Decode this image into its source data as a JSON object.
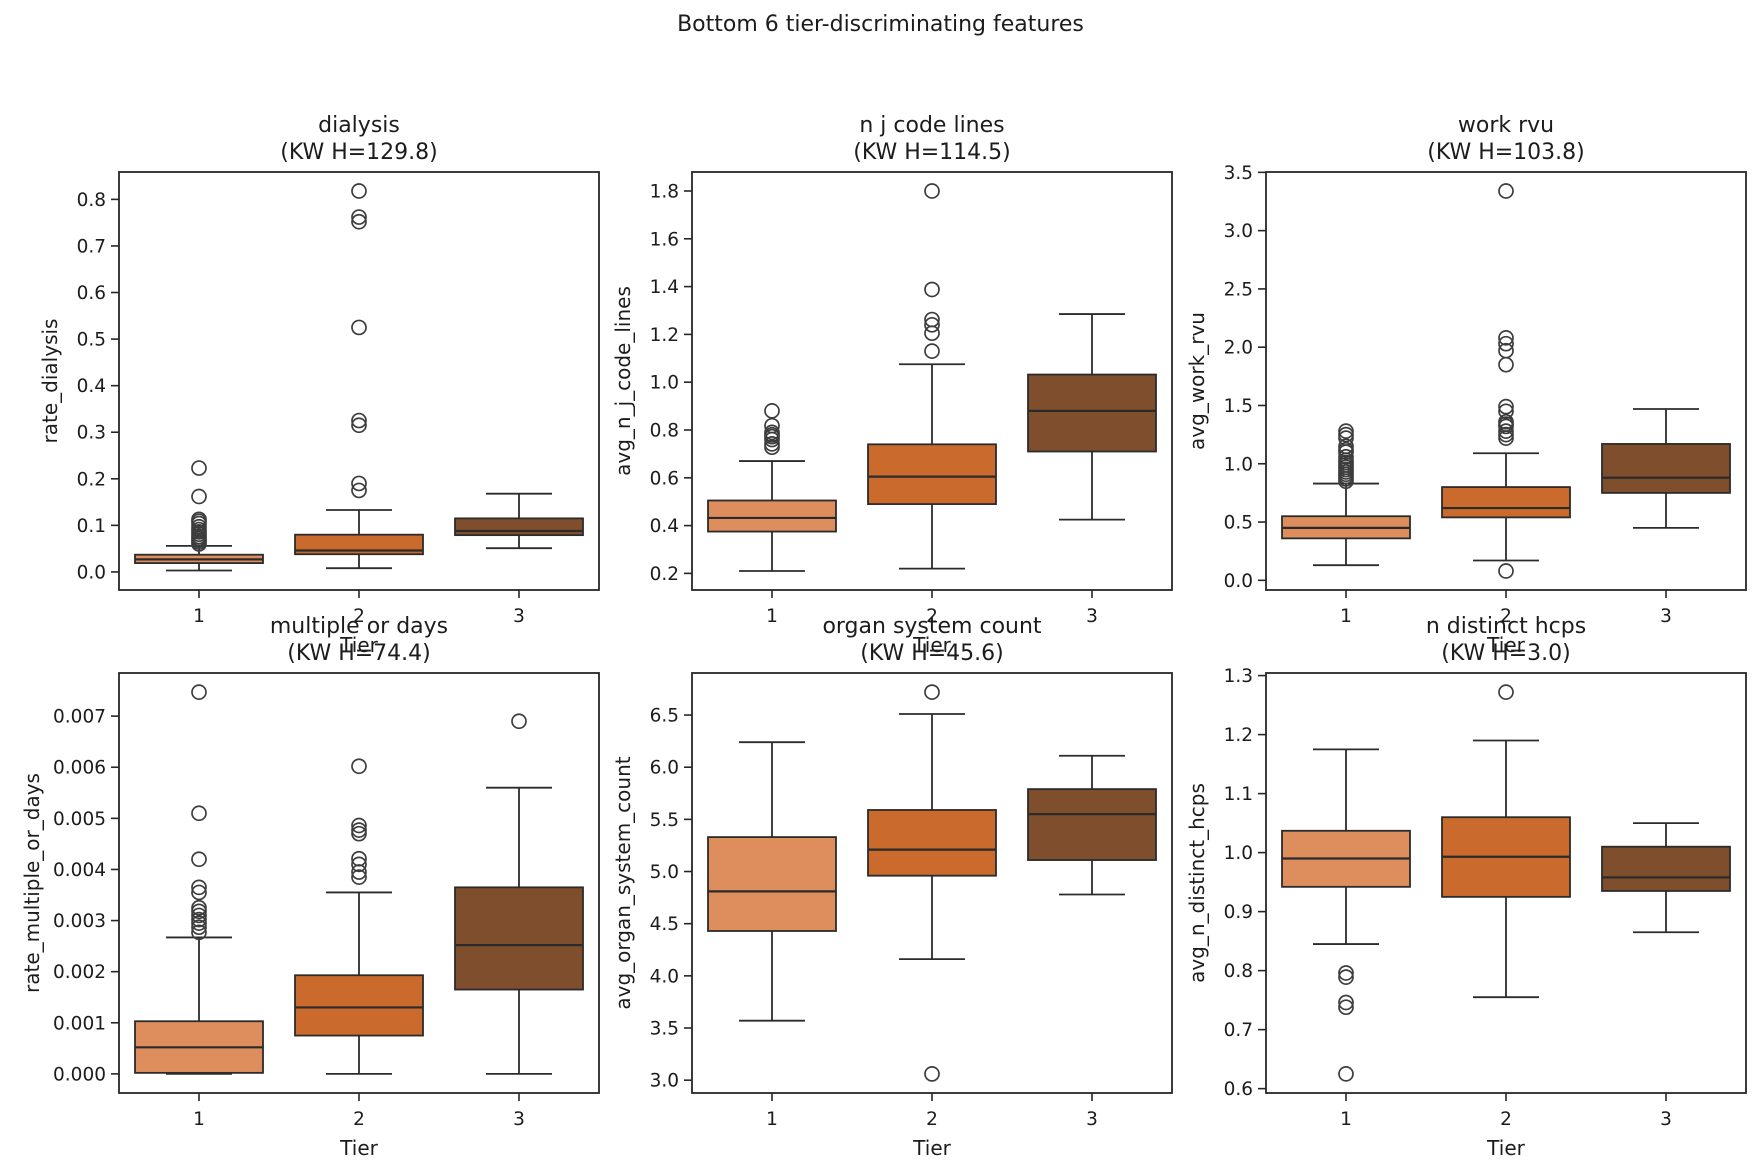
{
  "figure": {
    "suptitle": "Bottom 6 tier-discriminating features",
    "background": "#ffffff",
    "text_color": "#1c1c1c"
  },
  "palette": {
    "tier_fills": [
      "#DD8E5C",
      "#CB6A2D",
      "#7F4E2C"
    ],
    "box_edge": "#2b2b2b",
    "whisker": "#2b2b2b",
    "outlier_edge": "#3d3d3d",
    "axis_color": "#262626"
  },
  "chart_data": [
    {
      "type": "box",
      "title": "dialysis",
      "subtitle": "(KW H=129.8)",
      "kw_h": 129.8,
      "xlabel": "Tier",
      "ylabel": "rate_dialysis",
      "categories": [
        "1",
        "2",
        "3"
      ],
      "ylim": [
        -0.0388,
        0.8588
      ],
      "yticks": [
        0.0,
        0.1,
        0.2,
        0.3,
        0.4,
        0.5,
        0.6,
        0.7,
        0.8
      ],
      "ytick_decimals": 1,
      "boxes": [
        {
          "tier": "1",
          "whisker_low": 0.003,
          "q1": 0.019,
          "median": 0.027,
          "q3": 0.037,
          "whisker_high": 0.056,
          "outliers": [
            0.06,
            0.064,
            0.068,
            0.072,
            0.076,
            0.081,
            0.086,
            0.091,
            0.097,
            0.104,
            0.109,
            0.113,
            0.162,
            0.223
          ]
        },
        {
          "tier": "2",
          "whisker_low": 0.008,
          "q1": 0.038,
          "median": 0.046,
          "q3": 0.08,
          "whisker_high": 0.133,
          "outliers": [
            0.175,
            0.19,
            0.315,
            0.325,
            0.525,
            0.752,
            0.762,
            0.818
          ]
        },
        {
          "tier": "3",
          "whisker_low": 0.051,
          "q1": 0.079,
          "median": 0.088,
          "q3": 0.115,
          "whisker_high": 0.168,
          "outliers": []
        }
      ]
    },
    {
      "type": "box",
      "title": "n j code lines",
      "subtitle": "(KW H=114.5)",
      "kw_h": 114.5,
      "xlabel": "Tier",
      "ylabel": "avg_n_j_code_lines",
      "categories": [
        "1",
        "2",
        "3"
      ],
      "ylim": [
        0.1305,
        1.8795
      ],
      "yticks": [
        0.2,
        0.4,
        0.6,
        0.8,
        1.0,
        1.2,
        1.4,
        1.6,
        1.8
      ],
      "ytick_decimals": 1,
      "boxes": [
        {
          "tier": "1",
          "whisker_low": 0.21,
          "q1": 0.375,
          "median": 0.432,
          "q3": 0.505,
          "whisker_high": 0.67,
          "outliers": [
            0.728,
            0.742,
            0.76,
            0.772,
            0.78,
            0.79,
            0.818,
            0.88
          ]
        },
        {
          "tier": "2",
          "whisker_low": 0.22,
          "q1": 0.49,
          "median": 0.605,
          "q3": 0.74,
          "whisker_high": 1.075,
          "outliers": [
            1.13,
            1.205,
            1.24,
            1.262,
            1.388,
            1.8
          ]
        },
        {
          "tier": "3",
          "whisker_low": 0.425,
          "q1": 0.71,
          "median": 0.88,
          "q3": 1.032,
          "whisker_high": 1.285,
          "outliers": []
        }
      ]
    },
    {
      "type": "box",
      "title": "work rvu",
      "subtitle": "(KW H=103.8)",
      "kw_h": 103.8,
      "xlabel": "Tier",
      "ylabel": "avg_work_rvu",
      "categories": [
        "1",
        "2",
        "3"
      ],
      "ylim": [
        -0.083,
        3.503
      ],
      "yticks": [
        0.0,
        0.5,
        1.0,
        1.5,
        2.0,
        2.5,
        3.0,
        3.5
      ],
      "ytick_decimals": 1,
      "boxes": [
        {
          "tier": "1",
          "whisker_low": 0.13,
          "q1": 0.36,
          "median": 0.45,
          "q3": 0.55,
          "whisker_high": 0.83,
          "outliers": [
            0.85,
            0.87,
            0.89,
            0.91,
            0.93,
            0.95,
            0.97,
            0.99,
            1.01,
            1.03,
            1.06,
            1.1,
            1.12,
            1.15,
            1.22,
            1.25,
            1.28
          ]
        },
        {
          "tier": "2",
          "whisker_low": 0.17,
          "q1": 0.54,
          "median": 0.62,
          "q3": 0.8,
          "whisker_high": 1.09,
          "outliers": [
            0.08,
            1.22,
            1.25,
            1.28,
            1.32,
            1.34,
            1.36,
            1.45,
            1.49,
            1.85,
            1.97,
            2.03,
            2.08,
            3.34
          ]
        },
        {
          "tier": "3",
          "whisker_low": 0.45,
          "q1": 0.75,
          "median": 0.88,
          "q3": 1.17,
          "whisker_high": 1.47,
          "outliers": []
        }
      ]
    },
    {
      "type": "box",
      "title": "multiple or days",
      "subtitle": "(KW H=74.4)",
      "kw_h": 74.4,
      "xlabel": "Tier",
      "ylabel": "rate_multiple_or_days",
      "categories": [
        "1",
        "2",
        "3"
      ],
      "ylim": [
        -0.000374,
        0.007844
      ],
      "yticks": [
        0.0,
        0.001,
        0.002,
        0.003,
        0.004,
        0.005,
        0.006,
        0.007
      ],
      "ytick_decimals": 3,
      "boxes": [
        {
          "tier": "1",
          "whisker_low": 0.0,
          "q1": 2e-05,
          "median": 0.00052,
          "q3": 0.00103,
          "whisker_high": 0.00267,
          "outliers": [
            0.00277,
            0.00287,
            0.00295,
            0.00302,
            0.0031,
            0.00318,
            0.00325,
            0.00355,
            0.00365,
            0.0042,
            0.0051,
            0.00747
          ]
        },
        {
          "tier": "2",
          "whisker_low": 0.0,
          "q1": 0.00075,
          "median": 0.0013,
          "q3": 0.00193,
          "whisker_high": 0.00355,
          "outliers": [
            0.00385,
            0.00395,
            0.0041,
            0.00421,
            0.0047,
            0.00477,
            0.00486,
            0.00602
          ]
        },
        {
          "tier": "3",
          "whisker_low": 0.0,
          "q1": 0.00165,
          "median": 0.00252,
          "q3": 0.00365,
          "whisker_high": 0.0056,
          "outliers": [
            0.0069
          ]
        }
      ]
    },
    {
      "type": "box",
      "title": "organ system count",
      "subtitle": "(KW H=45.6)",
      "kw_h": 45.6,
      "xlabel": "Tier",
      "ylabel": "avg_organ_system_count",
      "categories": [
        "1",
        "2",
        "3"
      ],
      "ylim": [
        2.877,
        6.903
      ],
      "yticks": [
        3.0,
        3.5,
        4.0,
        4.5,
        5.0,
        5.5,
        6.0,
        6.5
      ],
      "ytick_decimals": 1,
      "boxes": [
        {
          "tier": "1",
          "whisker_low": 3.57,
          "q1": 4.43,
          "median": 4.81,
          "q3": 5.33,
          "whisker_high": 6.24,
          "outliers": []
        },
        {
          "tier": "2",
          "whisker_low": 4.16,
          "q1": 4.96,
          "median": 5.21,
          "q3": 5.59,
          "whisker_high": 6.51,
          "outliers": [
            6.72,
            3.06
          ]
        },
        {
          "tier": "3",
          "whisker_low": 4.78,
          "q1": 5.11,
          "median": 5.55,
          "q3": 5.79,
          "whisker_high": 6.11,
          "outliers": []
        }
      ]
    },
    {
      "type": "box",
      "title": "n distinct hcps",
      "subtitle": "(KW H=3.0)",
      "kw_h": 3.0,
      "xlabel": "Tier",
      "ylabel": "avg_n_distinct_hcps",
      "categories": [
        "1",
        "2",
        "3"
      ],
      "ylim": [
        0.5926,
        1.3044
      ],
      "yticks": [
        0.6,
        0.7,
        0.8,
        0.9,
        1.0,
        1.1,
        1.2,
        1.3
      ],
      "ytick_decimals": 1,
      "boxes": [
        {
          "tier": "1",
          "whisker_low": 0.845,
          "q1": 0.942,
          "median": 0.99,
          "q3": 1.037,
          "whisker_high": 1.175,
          "outliers": [
            0.796,
            0.789,
            0.746,
            0.738,
            0.625
          ]
        },
        {
          "tier": "2",
          "whisker_low": 0.755,
          "q1": 0.925,
          "median": 0.993,
          "q3": 1.06,
          "whisker_high": 1.19,
          "outliers": [
            1.272
          ]
        },
        {
          "tier": "3",
          "whisker_low": 0.865,
          "q1": 0.935,
          "median": 0.958,
          "q3": 1.01,
          "whisker_high": 1.05,
          "outliers": []
        }
      ]
    }
  ]
}
